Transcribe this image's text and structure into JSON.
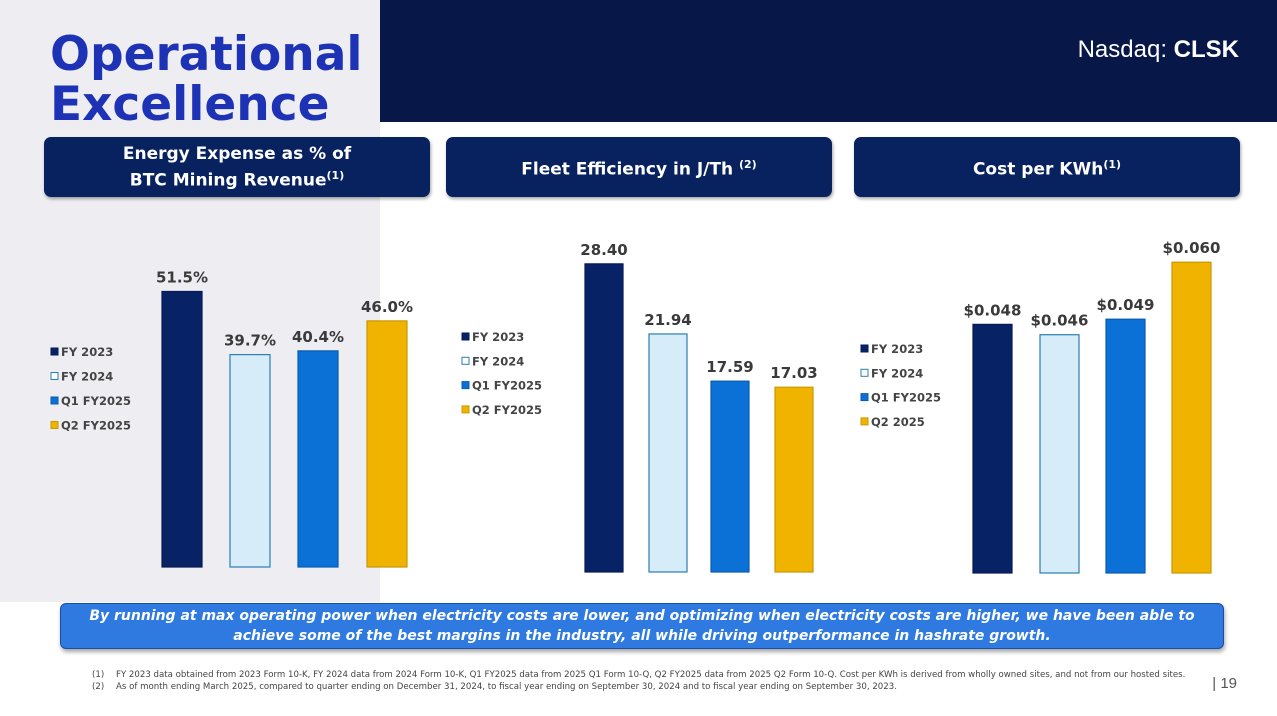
{
  "title": {
    "line1": "Operational",
    "line2": "Excellence"
  },
  "ticker": {
    "prefix": "Nasdaq:",
    "symbol": "CLSK"
  },
  "charts_headers": [
    {
      "text": "Energy Expense as % of BTC Mining Revenue",
      "sup": "(1)"
    },
    {
      "text": "Fleet Efficiency in J/Th",
      "sup": "(2)"
    },
    {
      "text": "Cost per KWh",
      "sup": "(1)"
    }
  ],
  "colors": {
    "fy2023": "#082266",
    "fy2024": "#d6ecf8",
    "q1fy2025": "#0c71d6",
    "q2fy2025": "#f0b400"
  },
  "chart_data": [
    {
      "type": "bar",
      "title": "Energy Expense as % of BTC Mining Revenue",
      "categories": [
        "FY 2023",
        "FY 2024",
        "Q1 FY2025",
        "Q2 FY2025"
      ],
      "values": [
        51.5,
        39.7,
        40.4,
        46.0
      ],
      "labels": [
        "51.5%",
        "39.7%",
        "40.4%",
        "46.0%"
      ],
      "legend": [
        "FY 2023",
        "FY 2024",
        "Q1 FY2025",
        "Q2 FY2025"
      ],
      "legend_position": "left",
      "grid": false
    },
    {
      "type": "bar",
      "title": "Fleet Efficiency in J/Th",
      "categories": [
        "FY 2023",
        "FY 2024",
        "Q1 FY2025",
        "Q2 FY2025"
      ],
      "values": [
        28.4,
        21.94,
        17.59,
        17.03
      ],
      "labels": [
        "28.40",
        "21.94",
        "17.59",
        "17.03"
      ],
      "legend": [
        "FY 2023",
        "FY 2024",
        "Q1 FY2025",
        "Q2 FY2025"
      ],
      "legend_position": "left",
      "grid": false
    },
    {
      "type": "bar",
      "title": "Cost per KWh",
      "categories": [
        "FY 2023",
        "FY 2024",
        "Q1 FY2025",
        "Q2 2025"
      ],
      "values": [
        0.048,
        0.046,
        0.049,
        0.06
      ],
      "labels": [
        "$0.048",
        "$0.046",
        "$0.049",
        "$0.060"
      ],
      "legend": [
        "FY 2023",
        "FY 2024",
        "Q1 FY2025",
        "Q2 2025"
      ],
      "legend_position": "left",
      "grid": false
    }
  ],
  "callout": "By running at max operating power when electricity costs are lower, and optimizing when electricity costs are higher, we have been able to achieve some of the best margins in the industry, all while driving outperformance in hashrate growth.",
  "footnotes": [
    {
      "num": "(1)",
      "text": "FY 2023 data obtained from 2023 Form 10-K, FY 2024 data from 2024 Form 10-K, Q1 FY2025 data from 2025 Q1 Form 10-Q, Q2 FY2025 data from 2025 Q2 Form 10-Q. Cost per KWh is derived from wholly owned sites, and not from our hosted sites."
    },
    {
      "num": "(2)",
      "text": "As of month ending March 2025, compared to quarter ending on December 31, 2024, to fiscal year ending on September 30, 2024 and to fiscal year ending on September 30, 2023."
    }
  ],
  "page_number": "| 19"
}
